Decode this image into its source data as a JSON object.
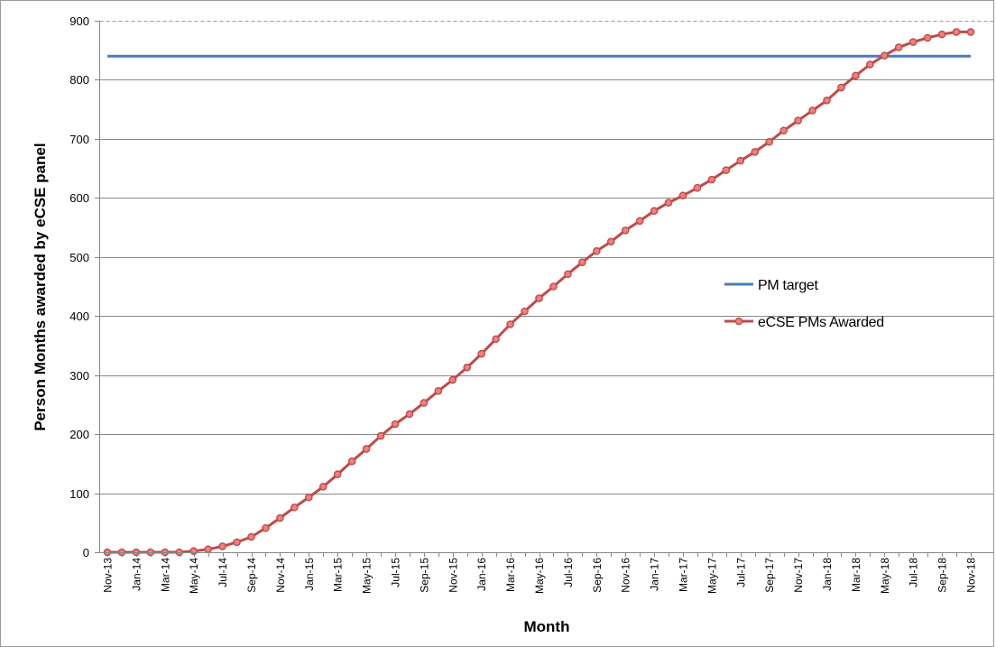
{
  "chart_data": {
    "type": "line",
    "title": "",
    "xlabel": "Month",
    "ylabel": "Person Months awarded by eCSE panel",
    "ylim": [
      0,
      900
    ],
    "yticks": [
      "0",
      "100",
      "200",
      "300",
      "400",
      "500",
      "600",
      "700",
      "800",
      "900"
    ],
    "grid": true,
    "legend_position": "right",
    "categories": [
      "Nov-13",
      "Dec-13",
      "Jan-14",
      "Feb-14",
      "Mar-14",
      "Apr-14",
      "May-14",
      "Jun-14",
      "Jul-14",
      "Aug-14",
      "Sep-14",
      "Oct-14",
      "Nov-14",
      "Dec-14",
      "Jan-15",
      "Feb-15",
      "Mar-15",
      "Apr-15",
      "May-15",
      "Jun-15",
      "Jul-15",
      "Aug-15",
      "Sep-15",
      "Oct-15",
      "Nov-15",
      "Dec-15",
      "Jan-16",
      "Feb-16",
      "Mar-16",
      "Apr-16",
      "May-16",
      "Jun-16",
      "Jul-16",
      "Aug-16",
      "Sep-16",
      "Oct-16",
      "Nov-16",
      "Dec-16",
      "Jan-17",
      "Feb-17",
      "Mar-17",
      "Apr-17",
      "May-17",
      "Jun-17",
      "Jul-17",
      "Aug-17",
      "Sep-17",
      "Oct-17",
      "Nov-17",
      "Dec-17",
      "Jan-18",
      "Feb-18",
      "Mar-18",
      "Apr-18",
      "May-18",
      "Jun-18",
      "Jul-18",
      "Aug-18",
      "Sep-18",
      "Oct-18",
      "Nov-18"
    ],
    "tick_labels": [
      "Nov-13",
      "Jan-14",
      "Mar-14",
      "May-14",
      "Jul-14",
      "Sep-14",
      "Nov-14",
      "Jan-15",
      "Mar-15",
      "May-15",
      "Jul-15",
      "Sep-15",
      "Nov-15",
      "Jan-16",
      "Mar-16",
      "May-16",
      "Jul-16",
      "Sep-16",
      "Nov-16",
      "Jan-17",
      "Mar-17",
      "May-17",
      "Jul-17",
      "Sep-17",
      "Nov-17",
      "Jan-18",
      "Mar-18",
      "May-18",
      "Jul-18",
      "Sep-18",
      "Nov-18"
    ],
    "series": [
      {
        "name": "PM target",
        "color": "#4a7ebb",
        "marker": "none",
        "values": [
          840,
          840,
          840,
          840,
          840,
          840,
          840,
          840,
          840,
          840,
          840,
          840,
          840,
          840,
          840,
          840,
          840,
          840,
          840,
          840,
          840,
          840,
          840,
          840,
          840,
          840,
          840,
          840,
          840,
          840,
          840,
          840,
          840,
          840,
          840,
          840,
          840,
          840,
          840,
          840,
          840,
          840,
          840,
          840,
          840,
          840,
          840,
          840,
          840,
          840,
          840,
          840,
          840,
          840,
          840,
          840,
          840,
          840,
          840,
          840,
          840
        ]
      },
      {
        "name": "eCSE PMs Awarded",
        "color": "#be4b48",
        "marker_fill": "#f08080",
        "marker": "circle",
        "values": [
          0,
          0,
          0,
          0,
          0,
          0,
          2,
          5,
          10,
          17,
          26,
          41,
          58,
          76,
          93,
          111,
          132,
          154,
          175,
          197,
          217,
          234,
          253,
          273,
          292,
          313,
          336,
          361,
          386,
          408,
          430,
          450,
          471,
          491,
          510,
          526,
          545,
          561,
          578,
          592,
          604,
          617,
          631,
          647,
          663,
          678,
          695,
          714,
          731,
          748,
          765,
          787,
          807,
          826,
          841,
          855,
          864,
          871,
          877,
          881,
          881
        ]
      }
    ]
  }
}
